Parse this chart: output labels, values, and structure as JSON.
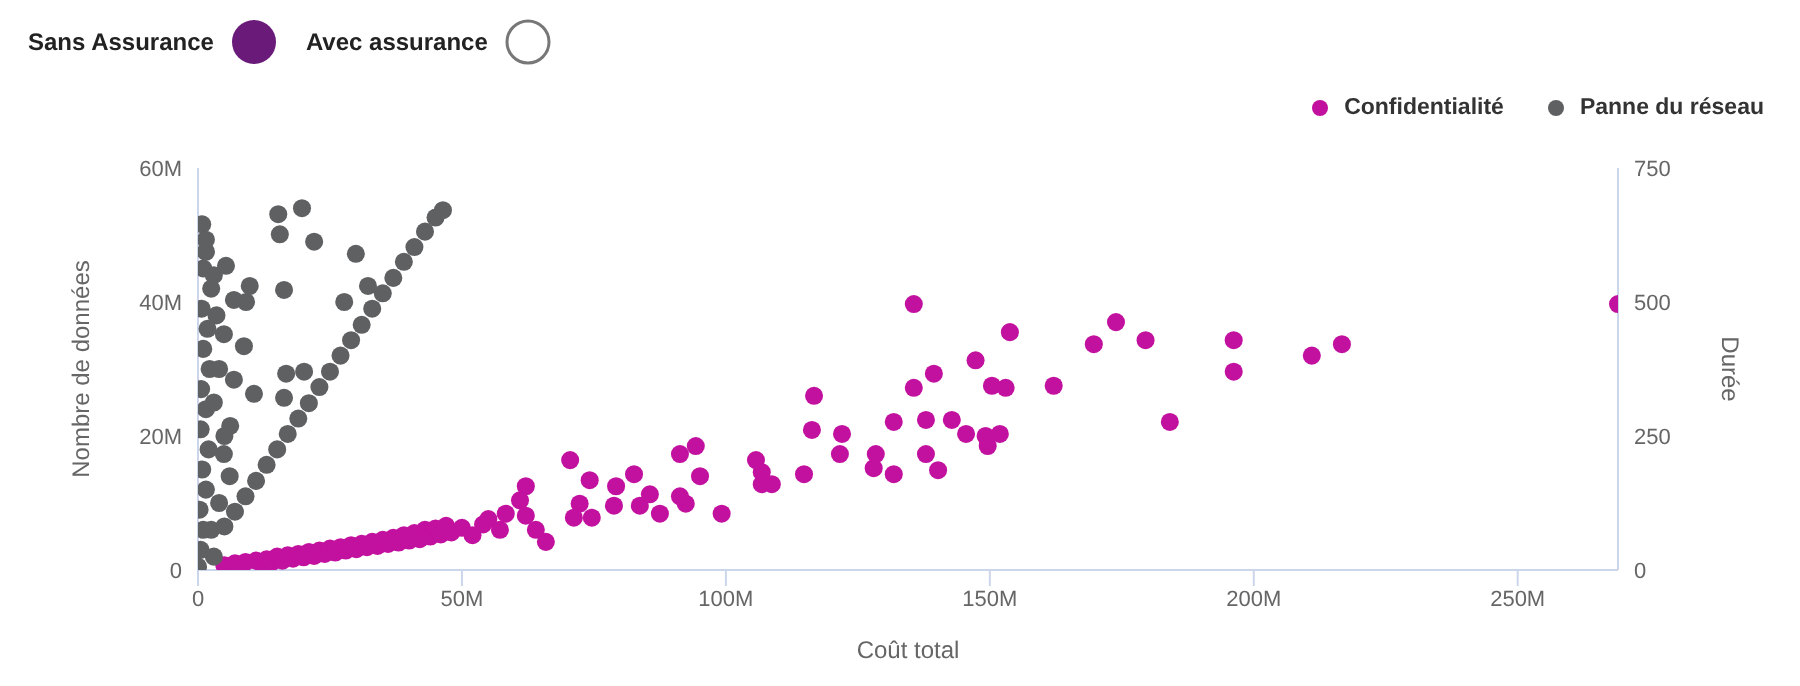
{
  "chart_data": {
    "type": "scatter",
    "xlabel": "Coût total",
    "ylabel": "Nombre de données",
    "y2label": "Durée",
    "annotations": [
      "Sans Assurance",
      "Avec assurance"
    ],
    "xlim": [
      0,
      269
    ],
    "xticks": [
      0,
      {
        "value": 50,
        "label": "50M"
      },
      {
        "value": 100,
        "label": "100M"
      },
      {
        "value": 150,
        "label": "150M"
      },
      {
        "value": 200,
        "label": "200M"
      },
      {
        "value": 250,
        "label": "250M"
      }
    ],
    "ylim": [
      0,
      60
    ],
    "yticks": [
      0,
      {
        "value": 20,
        "label": "20M"
      },
      {
        "value": 40,
        "label": "40M"
      },
      {
        "value": 60,
        "label": "60M"
      }
    ],
    "y2lim": [
      0,
      750
    ],
    "y2ticks": [
      0,
      250,
      500,
      750
    ],
    "legend": "top right",
    "marker": "circle",
    "series": [
      {
        "name": "Confidentialité",
        "color": "#c2109f",
        "x": [
          5,
          7,
          9,
          11,
          12,
          13,
          14,
          15,
          16,
          17,
          18,
          19,
          20,
          21,
          22,
          23,
          24,
          25,
          26,
          27,
          28,
          29,
          30,
          31,
          32,
          33,
          34,
          35,
          36,
          37,
          38,
          39,
          40,
          41,
          42,
          43,
          44,
          45,
          46,
          47,
          48,
          50,
          52,
          54,
          55,
          57.2,
          58.3,
          62.1,
          61,
          62.1,
          64,
          65.9,
          70.5,
          72.3,
          71.2,
          74.6,
          74.2,
          78.8,
          79.2,
          82.6,
          83.7,
          85.6,
          87.5,
          91.3,
          92.4,
          91.3,
          94.3,
          95.1,
          99.2,
          105.7,
          106.8,
          106.8,
          108.7,
          114.8,
          116.3,
          116.7,
          121.6,
          122,
          128,
          128.4,
          131.8,
          131.8,
          135.6,
          135.6,
          137.9,
          137.9,
          139.4,
          140.2,
          142.8,
          145.5,
          147.3,
          149.2,
          149.6,
          150.4,
          151.9,
          153,
          153.8,
          162.1,
          169.7,
          173.9,
          179.5,
          184.1,
          196.2,
          196.2,
          211,
          216.7,
          269
        ],
        "values": [
          0.7,
          1,
          1.2,
          1.4,
          1,
          1.6,
          1.2,
          2,
          1.4,
          2.2,
          1.7,
          2.4,
          1.9,
          2.7,
          2.1,
          2.9,
          2.4,
          3.2,
          2.6,
          3.4,
          2.9,
          3.7,
          3.1,
          3.9,
          3.4,
          4.2,
          3.6,
          4.5,
          3.9,
          4.8,
          4.1,
          5.2,
          4.4,
          5.5,
          4.6,
          6,
          5,
          6.2,
          5.3,
          6.6,
          5.6,
          6.3,
          5.2,
          6.8,
          7.6,
          6,
          8.4,
          12.5,
          10.4,
          8.1,
          6,
          4.2,
          16.4,
          9.9,
          7.8,
          7.8,
          13.4,
          9.6,
          12.5,
          14.3,
          9.6,
          11.3,
          8.4,
          17.3,
          9.9,
          11,
          18.5,
          14,
          8.4,
          16.4,
          14.6,
          12.8,
          12.8,
          14.3,
          20.9,
          26,
          17.3,
          20.3,
          15.2,
          17.3,
          14.3,
          22.1,
          39.7,
          27.2,
          22.4,
          17.3,
          29.3,
          14.9,
          22.4,
          20.3,
          31.3,
          20,
          18.5,
          27.5,
          20.3,
          27.2,
          35.5,
          27.5,
          33.7,
          37,
          34.3,
          22.1,
          34.3,
          29.6,
          32,
          33.7,
          39.7
        ]
      },
      {
        "name": "Panne du réseau",
        "color": "#5f6062",
        "x": [
          0,
          0.5,
          1,
          0.3,
          1.5,
          0.8,
          2,
          0.5,
          1.5,
          0.6,
          2.2,
          1,
          1.8,
          0.7,
          2.5,
          1,
          1.5,
          0.8,
          1.5,
          3,
          3.5,
          4,
          3,
          5,
          6,
          4,
          2.5,
          3,
          6.8,
          9.1,
          4.9,
          8.7,
          6.8,
          6.1,
          4.9,
          5,
          7,
          9,
          11,
          13,
          15,
          17,
          19,
          21,
          23,
          25,
          27,
          29,
          31,
          33,
          35,
          37,
          39,
          41,
          43,
          45,
          46.4,
          15.2,
          19.7,
          15.5,
          22,
          29.9,
          5.3,
          9.8,
          16.3,
          32.2,
          27.7,
          16.7,
          20.1,
          16.3,
          10.6
        ],
        "values": [
          0.5,
          3,
          6,
          9,
          12,
          15,
          18,
          21,
          24,
          27,
          30,
          33,
          36,
          39,
          42,
          45,
          47.5,
          51.6,
          49.3,
          44,
          38,
          30,
          25,
          20,
          14,
          10,
          6,
          2,
          40.3,
          40,
          35.2,
          33.4,
          28.4,
          21.5,
          17.3,
          6.5,
          8.7,
          11,
          13.3,
          15.7,
          18,
          20.3,
          22.6,
          24.9,
          27.3,
          29.6,
          32,
          34.3,
          36.6,
          39,
          41.3,
          43.6,
          46,
          48.2,
          50.5,
          52.6,
          53.7,
          53.1,
          54,
          50.1,
          49,
          47.2,
          45.4,
          42.4,
          41.8,
          42.4,
          40,
          29.3,
          29.6,
          25.7,
          26.3
        ]
      }
    ]
  }
}
